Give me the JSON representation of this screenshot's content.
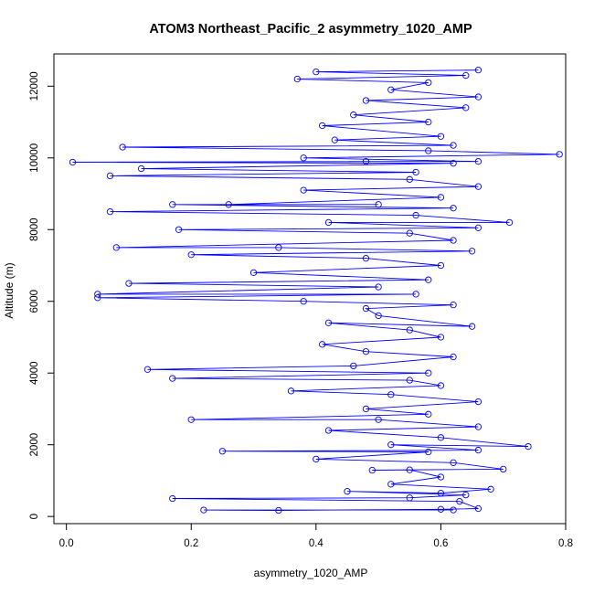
{
  "chart_data": {
    "type": "scatter",
    "title": "ATOM3 Northeast_Pacific_2 asymmetry_1020_AMP",
    "xlabel": "asymmetry_1020_AMP",
    "ylabel": "Altitude (m)",
    "xlim": [
      -0.02,
      0.8
    ],
    "ylim": [
      -200,
      12900
    ],
    "x_ticks": [
      0.0,
      0.2,
      0.4,
      0.6,
      0.8
    ],
    "y_ticks": [
      0,
      2000,
      4000,
      6000,
      8000,
      10000,
      12000
    ],
    "x_tick_labels": [
      "0.0",
      "0.2",
      "0.4",
      "0.6",
      "0.8"
    ],
    "y_tick_labels": [
      "0",
      "2000",
      "4000",
      "6000",
      "8000",
      "10000",
      "12000"
    ],
    "grid": false,
    "marker": "open-circle",
    "connected": true,
    "color": "#0000ff",
    "series": [
      {
        "points": [
          [
            0.62,
            180
          ],
          [
            0.22,
            180
          ],
          [
            0.34,
            170
          ],
          [
            0.6,
            200
          ],
          [
            0.66,
            220
          ],
          [
            0.63,
            420
          ],
          [
            0.17,
            500
          ],
          [
            0.55,
            520
          ],
          [
            0.64,
            600
          ],
          [
            0.45,
            700
          ],
          [
            0.6,
            650
          ],
          [
            0.68,
            760
          ],
          [
            0.52,
            900
          ],
          [
            0.6,
            1100
          ],
          [
            0.55,
            1300
          ],
          [
            0.49,
            1290
          ],
          [
            0.7,
            1320
          ],
          [
            0.62,
            1500
          ],
          [
            0.4,
            1600
          ],
          [
            0.58,
            1800
          ],
          [
            0.25,
            1820
          ],
          [
            0.66,
            1850
          ],
          [
            0.52,
            2000
          ],
          [
            0.74,
            1950
          ],
          [
            0.6,
            2200
          ],
          [
            0.42,
            2400
          ],
          [
            0.66,
            2500
          ],
          [
            0.5,
            2700
          ],
          [
            0.2,
            2700
          ],
          [
            0.58,
            2850
          ],
          [
            0.48,
            3000
          ],
          [
            0.66,
            3200
          ],
          [
            0.52,
            3400
          ],
          [
            0.36,
            3500
          ],
          [
            0.6,
            3650
          ],
          [
            0.55,
            3800
          ],
          [
            0.17,
            3850
          ],
          [
            0.58,
            4000
          ],
          [
            0.13,
            4100
          ],
          [
            0.46,
            4200
          ],
          [
            0.62,
            4450
          ],
          [
            0.48,
            4600
          ],
          [
            0.41,
            4800
          ],
          [
            0.6,
            5000
          ],
          [
            0.55,
            5200
          ],
          [
            0.42,
            5400
          ],
          [
            0.65,
            5300
          ],
          [
            0.5,
            5600
          ],
          [
            0.48,
            5800
          ],
          [
            0.62,
            5900
          ],
          [
            0.38,
            6000
          ],
          [
            0.05,
            6100
          ],
          [
            0.56,
            6200
          ],
          [
            0.05,
            6200
          ],
          [
            0.5,
            6400
          ],
          [
            0.1,
            6500
          ],
          [
            0.58,
            6600
          ],
          [
            0.3,
            6800
          ],
          [
            0.6,
            7000
          ],
          [
            0.48,
            7200
          ],
          [
            0.2,
            7300
          ],
          [
            0.65,
            7400
          ],
          [
            0.34,
            7500
          ],
          [
            0.08,
            7500
          ],
          [
            0.62,
            7700
          ],
          [
            0.55,
            7900
          ],
          [
            0.18,
            8000
          ],
          [
            0.66,
            8050
          ],
          [
            0.42,
            8200
          ],
          [
            0.71,
            8200
          ],
          [
            0.56,
            8400
          ],
          [
            0.07,
            8500
          ],
          [
            0.62,
            8600
          ],
          [
            0.17,
            8700
          ],
          [
            0.5,
            8700
          ],
          [
            0.26,
            8700
          ],
          [
            0.6,
            8900
          ],
          [
            0.38,
            9100
          ],
          [
            0.66,
            9200
          ],
          [
            0.55,
            9400
          ],
          [
            0.07,
            9500
          ],
          [
            0.56,
            9600
          ],
          [
            0.12,
            9700
          ],
          [
            0.62,
            9850
          ],
          [
            0.01,
            9880
          ],
          [
            0.48,
            9900
          ],
          [
            0.66,
            9900
          ],
          [
            0.38,
            10000
          ],
          [
            0.79,
            10100
          ],
          [
            0.58,
            10200
          ],
          [
            0.09,
            10300
          ],
          [
            0.62,
            10350
          ],
          [
            0.43,
            10500
          ],
          [
            0.6,
            10600
          ],
          [
            0.41,
            10900
          ],
          [
            0.58,
            11000
          ],
          [
            0.46,
            11200
          ],
          [
            0.64,
            11400
          ],
          [
            0.48,
            11600
          ],
          [
            0.66,
            11700
          ],
          [
            0.52,
            11900
          ],
          [
            0.58,
            12100
          ],
          [
            0.37,
            12200
          ],
          [
            0.64,
            12300
          ],
          [
            0.4,
            12400
          ],
          [
            0.66,
            12450
          ]
        ]
      }
    ]
  }
}
